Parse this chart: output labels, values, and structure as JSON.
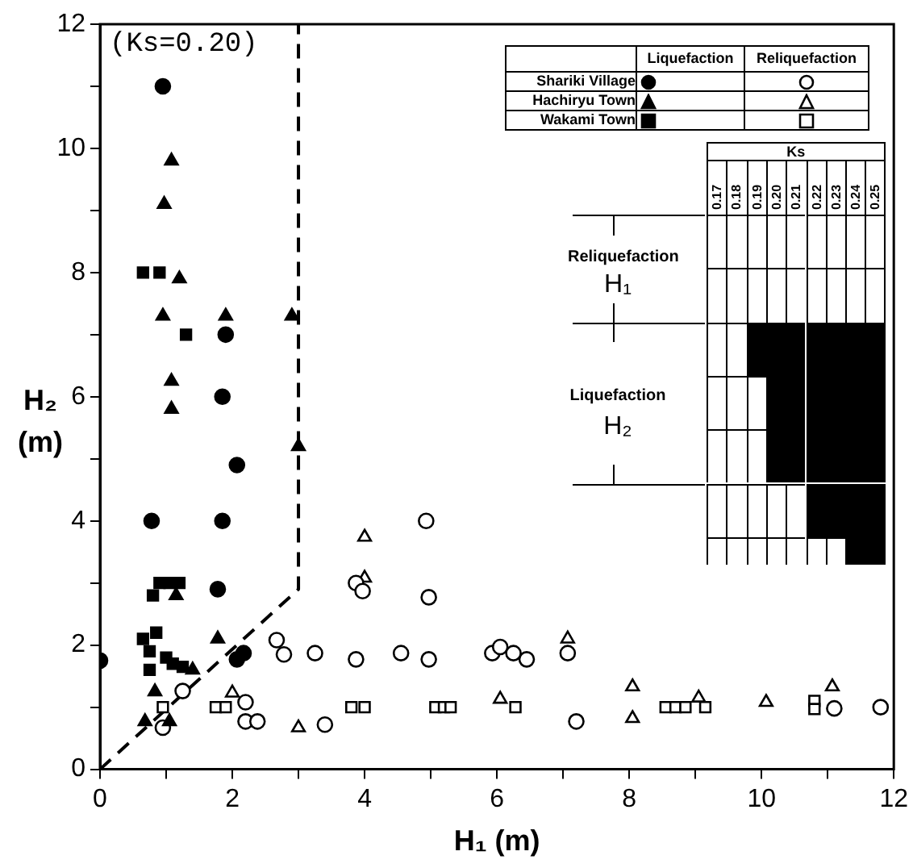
{
  "chart_data": {
    "type": "scatter",
    "xlabel": "H₁ (m)",
    "ylabel": "H₂ (m)",
    "xlim": [
      0,
      12
    ],
    "ylim": [
      0,
      12
    ],
    "xticks": [
      0,
      {
        "value": 1,
        "label": null
      },
      2,
      {
        "value": 3,
        "label": null
      },
      4,
      {
        "value": 5,
        "label": null
      },
      6,
      {
        "value": 7,
        "label": null
      },
      8,
      {
        "value": 9,
        "label": null
      },
      10,
      {
        "value": 11,
        "label": null
      },
      12
    ],
    "yticks": [
      0,
      {
        "value": 1,
        "label": null
      },
      2,
      {
        "value": 3,
        "label": null
      },
      4,
      {
        "value": 5,
        "label": null
      },
      6,
      {
        "value": 7,
        "label": null
      },
      8,
      {
        "value": 9,
        "label": null
      },
      10,
      {
        "value": 11,
        "label": null
      },
      12
    ],
    "grid": false,
    "legend": "top right",
    "annotations": [
      "(Ks=0.20)",
      "Liquefaction",
      "Reliquefaction",
      "Ks",
      "0.17",
      "0.18",
      "0.19",
      "0.20",
      "0.21",
      "0.22",
      "0.23",
      "0.24",
      "0.25",
      "Reliquefaction",
      "H₁",
      "Liquefaction",
      "H₂"
    ],
    "series": [
      {
        "name": "Shariki Village",
        "color": "#000000",
        "marker": "circle",
        "x": [
          0.95,
          1.9,
          1.85,
          2.07,
          0.78,
          1.85,
          1.78,
          2.07,
          2.17,
          0
        ],
        "values": [
          11.0,
          7.0,
          6.0,
          4.9,
          4.0,
          4.0,
          2.9,
          1.77,
          1.87,
          1.75
        ]
      },
      {
        "name": "Hachiryu Town",
        "color": "#000000",
        "marker": "triangle",
        "x": [
          1.08,
          0.97,
          1.2,
          0.95,
          1.9,
          2.9,
          1.08,
          1.08,
          3.0,
          1.15,
          1.78,
          1.4,
          0.83,
          0.68,
          1.05
        ],
        "values": [
          9.8,
          9.1,
          7.9,
          7.3,
          7.3,
          7.3,
          6.25,
          5.8,
          5.2,
          2.8,
          2.1,
          1.6,
          1.25,
          0.77,
          0.77
        ]
      },
      {
        "name": "Wakami Town",
        "color": "#000000",
        "marker": "square",
        "x": [
          0.65,
          0.9,
          1.3,
          0.8,
          0.9,
          1.05,
          1.2,
          0.65,
          0.85,
          0.75,
          1.0,
          0.75,
          1.1,
          1.25
        ],
        "values": [
          8.0,
          8.0,
          7.0,
          2.8,
          3.0,
          3.0,
          3.0,
          2.1,
          2.2,
          1.9,
          1.8,
          1.6,
          1.7,
          1.65
        ]
      },
      {
        "color": "#ffffff",
        "marker": "circle",
        "x": [
          0.95,
          1.25,
          2.2,
          2.2,
          2.38,
          2.67,
          2.78,
          3.25,
          3.87,
          4.55,
          3.87,
          3.97,
          3.4,
          4.93,
          4.97,
          4.97,
          5.93,
          6.05,
          6.25,
          6.45,
          7.07,
          7.2,
          11.1,
          11.8
        ],
        "values": [
          0.67,
          1.26,
          1.08,
          0.77,
          0.77,
          2.08,
          1.85,
          1.87,
          1.77,
          1.87,
          3.0,
          2.87,
          0.72,
          4.0,
          2.77,
          1.77,
          1.87,
          1.97,
          1.87,
          1.77,
          1.87,
          0.77,
          0.98,
          1.0
        ]
      },
      {
        "color": "#ffffff",
        "marker": "triangle",
        "x": [
          2.0,
          4.0,
          4.0,
          3.0,
          6.05,
          7.07,
          8.05,
          8.05,
          9.05,
          10.07,
          11.07
        ],
        "values": [
          1.23,
          3.08,
          3.74,
          0.67,
          1.13,
          2.1,
          1.33,
          0.82,
          1.15,
          1.08,
          1.33
        ]
      },
      {
        "color": "#ffffff",
        "marker": "square",
        "x": [
          0.95,
          1.75,
          1.9,
          3.8,
          4.0,
          5.07,
          5.2,
          5.3,
          6.28,
          8.55,
          8.7,
          8.85,
          9.15,
          10.8,
          10.8
        ],
        "values": [
          1.0,
          1.0,
          1.0,
          1.0,
          1.0,
          1.0,
          1.0,
          1.0,
          1.0,
          1.0,
          1.0,
          1.0,
          1.0,
          1.1,
          0.97
        ]
      },
      {
        "type": "line",
        "color": "#000000",
        "marker": "none",
        "line_style": "dashed",
        "x": [
          0,
          3,
          3
        ],
        "values": [
          0,
          2.9,
          12
        ]
      }
    ]
  }
}
